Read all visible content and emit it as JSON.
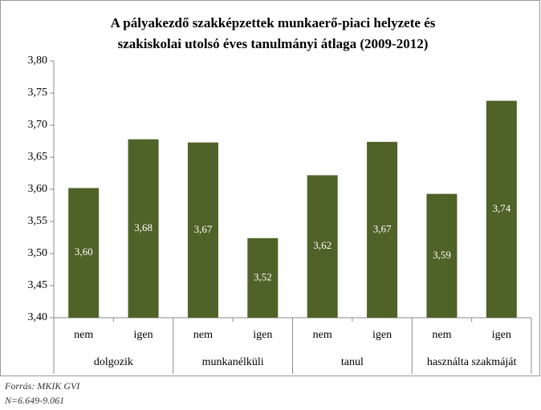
{
  "chart_data": {
    "type": "bar",
    "title": [
      "A pályakezdő szakképzettek munkaerő-piaci helyzete és",
      "szakiskolai utolsó éves tanulmányi átlaga (2009-2012)"
    ],
    "categories": [
      "nem",
      "igen",
      "nem",
      "igen",
      "nem",
      "igen",
      "nem",
      "igen"
    ],
    "groups": [
      "dolgozik",
      "munkanélküli",
      "tanul",
      "használta szakmáját"
    ],
    "values": [
      3.602,
      3.678,
      3.673,
      3.524,
      3.622,
      3.674,
      3.593,
      3.738
    ],
    "value_labels": [
      "3,60",
      "3,68",
      "3,67",
      "3,52",
      "3,62",
      "3,67",
      "3,59",
      "3,74"
    ],
    "color": "#4f6228",
    "ylim": [
      3.4,
      3.8
    ],
    "yticks": [
      {
        "value": 3.4,
        "label": "3,40"
      },
      {
        "value": 3.45,
        "label": "3,45"
      },
      {
        "value": 3.5,
        "label": "3,50"
      },
      {
        "value": 3.55,
        "label": "3,55"
      },
      {
        "value": 3.6,
        "label": "3,60"
      },
      {
        "value": 3.65,
        "label": "3,65"
      },
      {
        "value": 3.7,
        "label": "3,70"
      },
      {
        "value": 3.75,
        "label": "3,75"
      },
      {
        "value": 3.8,
        "label": "3,80"
      }
    ],
    "notes": [
      "Forrás: MKIK GVI",
      "N=6.649-9.061"
    ]
  }
}
